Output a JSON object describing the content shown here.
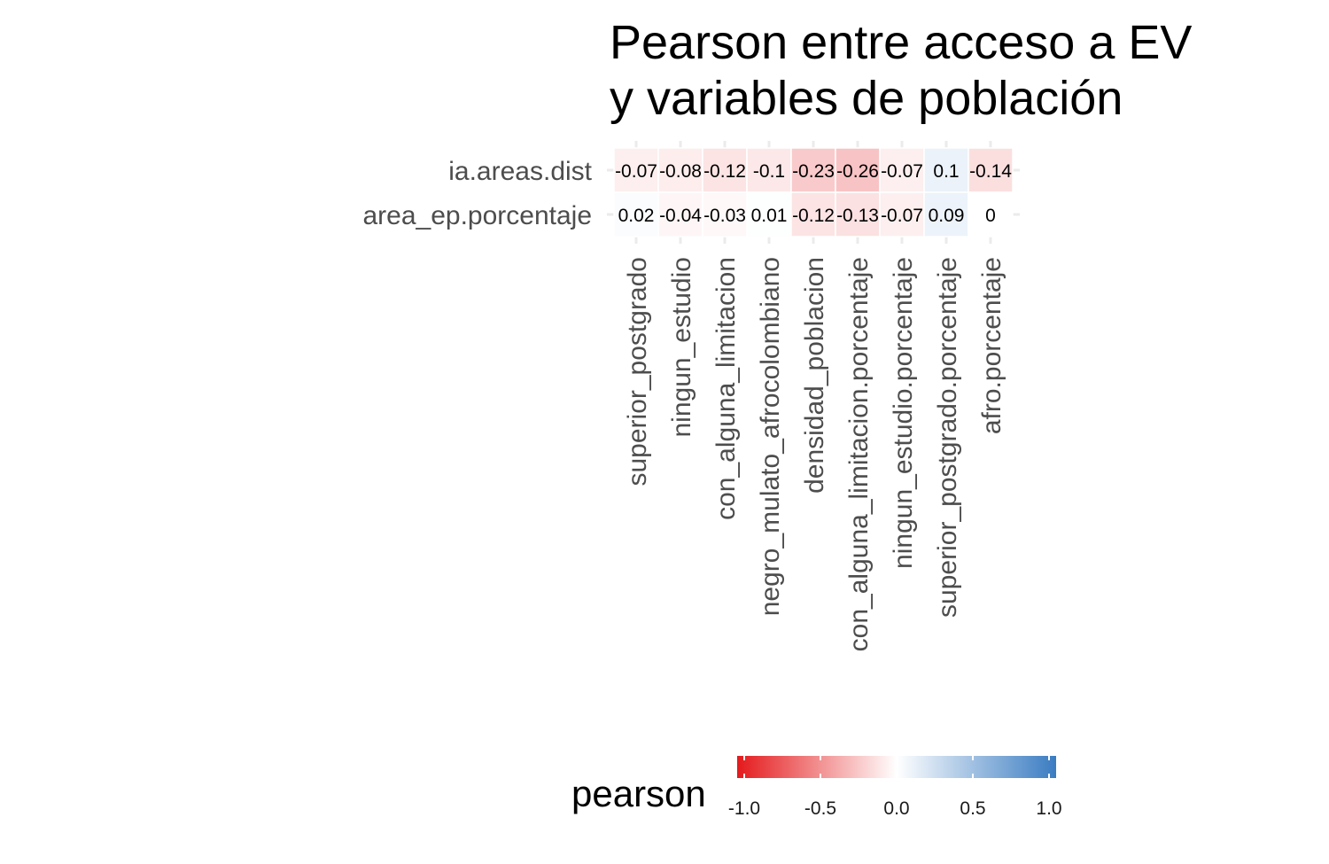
{
  "chart_data": {
    "type": "heatmap",
    "title_lines": [
      "Pearson entre acceso a EV",
      "y variables de población"
    ],
    "rows": [
      "ia.areas.dist",
      "area_ep.porcentaje"
    ],
    "columns": [
      "superior_postgrado",
      "ningun_estudio",
      "con_alguna_limitacion",
      "negro_mulato_afrocolombiano",
      "densidad_poblacion",
      "con_alguna_limitacion.porcentaje",
      "ningun_estudio.porcentaje",
      "superior_postgrado.porcentaje",
      "afro.porcentaje"
    ],
    "values": [
      [
        -0.07,
        -0.08,
        -0.12,
        -0.1,
        -0.23,
        -0.26,
        -0.07,
        0.1,
        -0.14
      ],
      [
        0.02,
        -0.04,
        -0.03,
        0.01,
        -0.12,
        -0.13,
        -0.07,
        0.09,
        0
      ]
    ],
    "value_labels": [
      [
        "-0.07",
        "-0.08",
        "-0.12",
        "-0.1",
        "-0.23",
        "-0.26",
        "-0.07",
        "0.1",
        "-0.14"
      ],
      [
        "0.02",
        "-0.04",
        "-0.03",
        "0.01",
        "-0.12",
        "-0.13",
        "-0.07",
        "0.09",
        "0"
      ]
    ],
    "legend": {
      "title": "pearson",
      "ticks": [
        -1.0,
        -0.5,
        0.0,
        0.5,
        1.0
      ],
      "tick_labels": [
        "-1.0",
        "-0.5",
        "0.0",
        "0.5",
        "1.0"
      ],
      "range": [
        -1,
        1
      ],
      "position": "bottom"
    },
    "colors": {
      "low": "#e41a1c",
      "mid": "#ffffff",
      "high": "#3a7cc2"
    }
  }
}
